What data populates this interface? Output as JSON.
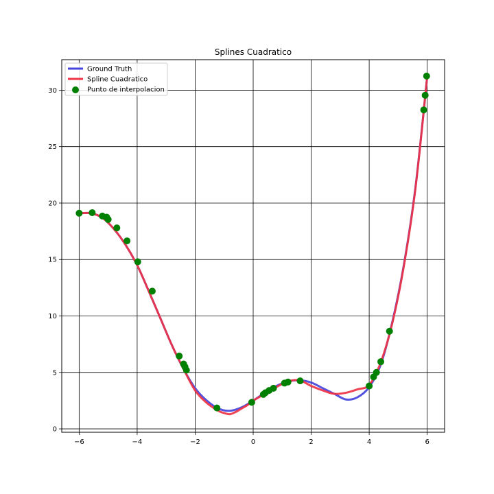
{
  "chart_data": {
    "type": "line",
    "title": "Splines Cuadratico",
    "xlabel": "",
    "ylabel": "",
    "xlim": [
      -6.6,
      6.6
    ],
    "ylim": [
      -0.3,
      32.7
    ],
    "xticks": [
      -6,
      -4,
      -2,
      0,
      2,
      4,
      6
    ],
    "yticks": [
      0,
      5,
      10,
      15,
      20,
      25,
      30
    ],
    "grid": true,
    "legend_position": "top-left",
    "series": [
      {
        "name": "Ground Truth",
        "kind": "line",
        "color": "#4444dd",
        "x": [
          -6.0,
          -5.6,
          -5.2,
          -4.8,
          -4.4,
          -4.0,
          -3.6,
          -3.2,
          -2.8,
          -2.4,
          -2.0,
          -1.6,
          -1.2,
          -0.8,
          -0.4,
          0.0,
          0.4,
          0.8,
          1.2,
          1.6,
          2.0,
          2.4,
          2.8,
          3.2,
          3.6,
          4.0,
          4.4,
          4.8,
          5.2,
          5.6,
          6.0
        ],
        "y": [
          19.1,
          19.1,
          18.7,
          17.7,
          16.3,
          14.5,
          12.2,
          9.8,
          7.4,
          5.3,
          3.6,
          2.5,
          1.8,
          1.6,
          1.9,
          2.5,
          3.2,
          3.8,
          4.2,
          4.3,
          4.1,
          3.6,
          3.1,
          2.6,
          2.8,
          3.7,
          5.7,
          9.5,
          14.6,
          21.5,
          31.2
        ]
      },
      {
        "name": "Spline Cuadratico",
        "kind": "line",
        "color": "#ee3344",
        "x": [
          -6.0,
          -5.6,
          -5.2,
          -4.8,
          -4.4,
          -4.0,
          -3.6,
          -3.2,
          -2.8,
          -2.4,
          -2.0,
          -1.6,
          -1.2,
          -1.0,
          -0.8,
          -0.6,
          -0.4,
          -0.2,
          0.0,
          0.4,
          0.8,
          1.2,
          1.6,
          2.0,
          2.4,
          2.8,
          3.2,
          3.6,
          4.0,
          4.4,
          4.8,
          5.2,
          5.6,
          6.0
        ],
        "y": [
          19.1,
          19.1,
          18.7,
          17.7,
          16.3,
          14.5,
          12.2,
          9.8,
          7.4,
          5.3,
          3.4,
          2.3,
          1.6,
          1.4,
          1.3,
          1.5,
          1.8,
          2.1,
          2.5,
          3.1,
          3.7,
          4.2,
          4.3,
          3.8,
          3.4,
          3.1,
          3.2,
          3.5,
          3.9,
          5.9,
          9.4,
          14.5,
          21.4,
          31.2
        ]
      },
      {
        "name": "Punto de interpolacion",
        "kind": "scatter",
        "color": "#008000",
        "x": [
          -6.0,
          -5.55,
          -5.2,
          -5.05,
          -5.0,
          -4.7,
          -4.35,
          -3.98,
          -3.48,
          -2.55,
          -2.4,
          -2.35,
          -2.3,
          -1.25,
          -0.05,
          0.35,
          0.42,
          0.55,
          0.7,
          1.08,
          1.2,
          1.62,
          4.0,
          4.15,
          4.25,
          4.4,
          4.7,
          5.88,
          5.93,
          5.98
        ],
        "y": [
          19.1,
          19.15,
          18.85,
          18.75,
          18.55,
          17.8,
          16.65,
          14.8,
          12.2,
          6.45,
          5.75,
          5.5,
          5.2,
          1.85,
          2.35,
          3.05,
          3.2,
          3.4,
          3.6,
          4.05,
          4.15,
          4.25,
          3.8,
          4.6,
          5.0,
          5.95,
          8.65,
          28.25,
          29.55,
          31.25
        ]
      }
    ]
  }
}
